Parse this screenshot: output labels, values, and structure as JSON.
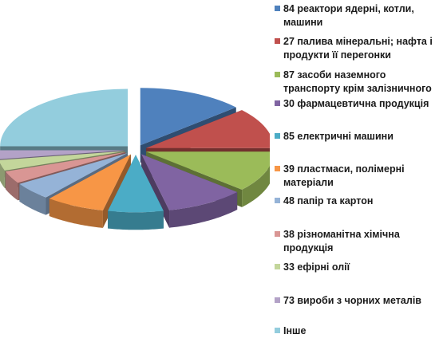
{
  "chart_data": {
    "type": "pie",
    "style": "3d-exploded",
    "title": "",
    "legend_position": "right",
    "categories": [
      "84 реактори ядерні, котли, машини",
      "27 палива мінеральні; нафта і продукти її перегонки",
      "87 засоби наземного транспорту крім залізничного",
      "30 фармацевтична продукція",
      "85 електричні машини",
      "39 пластмаси, полімерні матеріали",
      "48 папір та картон",
      "38 різноманітна хімічна продукція",
      "33 ефірні олії",
      "73 вироби з чорних металів",
      "Інше"
    ],
    "values": [
      13.5,
      11.5,
      11.5,
      10,
      7,
      7.5,
      5,
      3.5,
      3,
      2.5,
      25
    ],
    "colors": [
      "#4f81bd",
      "#c0504d",
      "#9bbb59",
      "#8064a2",
      "#4bacc6",
      "#f79646",
      "#95b3d7",
      "#d99694",
      "#c3d69b",
      "#b3a2c7",
      "#93cddd"
    ]
  }
}
